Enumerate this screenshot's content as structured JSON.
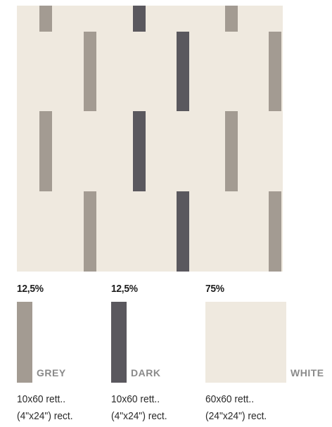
{
  "colors": {
    "background": "#efe9df",
    "grey": "#a39b92",
    "dark": "#5a585e",
    "white": "#efe9df"
  },
  "swatches": [
    {
      "percentage": "12,5%",
      "name": "GREY",
      "size_line1": "10x60 rett..",
      "size_line2": "(4\"x24\") rect."
    },
    {
      "percentage": "12,5%",
      "name": "DARK",
      "size_line1": "10x60 rett..",
      "size_line2": "(4\"x24\") rect."
    },
    {
      "percentage": "75%",
      "name": "WHITE",
      "size_line1": "60x60 rett..",
      "size_line2": "(24\"x24\") rect."
    }
  ]
}
